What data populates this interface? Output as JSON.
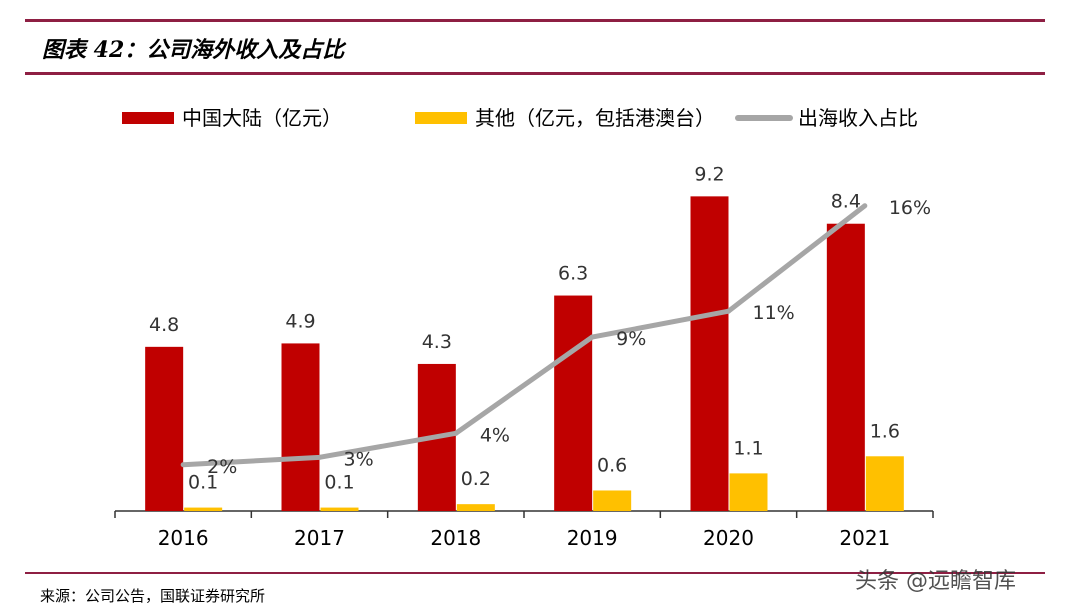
{
  "title": "图表 42：公司海外收入及占比",
  "source": "来源：公司公告，国联证券研究所",
  "watermark": "头条 @远瞻智库",
  "chart_data": {
    "type": "bar",
    "title": "",
    "categories": [
      "2016",
      "2017",
      "2018",
      "2019",
      "2020",
      "2021"
    ],
    "legend_position": "top",
    "grid": false,
    "series": [
      {
        "name": "中国大陆（亿元）",
        "type": "bar",
        "color": "#C00000",
        "values": [
          4.8,
          4.9,
          4.3,
          6.3,
          9.2,
          8.4
        ],
        "labels": [
          "4.8",
          "4.9",
          "4.3",
          "6.3",
          "9.2",
          "8.4"
        ]
      },
      {
        "name": "其他（亿元，包括港澳台）",
        "type": "bar",
        "color": "#FFC000",
        "values": [
          0.1,
          0.1,
          0.2,
          0.6,
          1.1,
          1.6
        ],
        "labels": [
          "0.1",
          "0.1",
          "0.2",
          "0.6",
          "1.1",
          "1.6"
        ]
      },
      {
        "name": "出海收入占比",
        "type": "line",
        "axis": "secondary",
        "color": "#A6A6A6",
        "values": [
          2.5,
          2.9,
          4.2,
          9.4,
          10.8,
          16.5
        ],
        "labels": [
          "2%",
          "3%",
          "4%",
          "9%",
          "11%",
          "16%"
        ]
      }
    ]
  }
}
